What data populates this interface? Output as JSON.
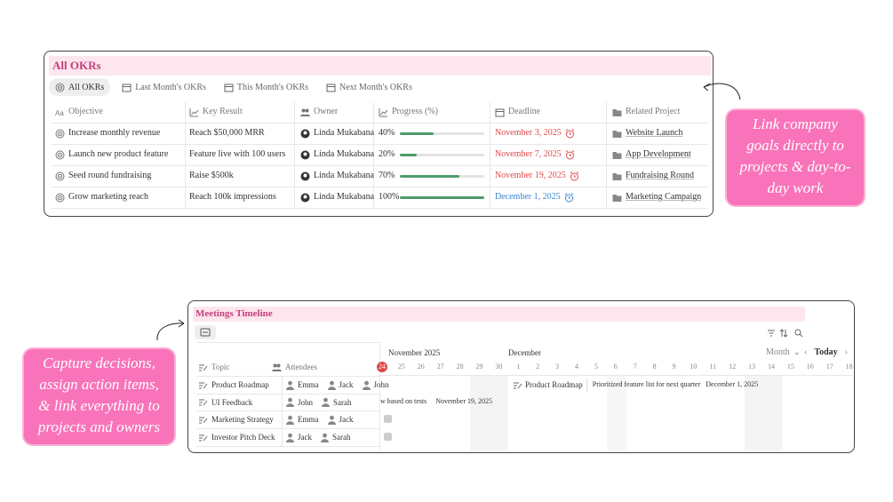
{
  "okrs": {
    "title": "All OKRs",
    "tabs": [
      "All OKRs",
      "Last Month's OKRs",
      "This Month's OKRs",
      "Next Month's OKRs"
    ],
    "columns": [
      "Objective",
      "Key Result",
      "Owner",
      "Progress (%)",
      "Deadline",
      "Related Project"
    ],
    "rows": [
      {
        "objective": "Increase monthly revenue",
        "key_result": "Reach $50,000 MRR",
        "owner": "Linda Mukabana",
        "progress": 40,
        "progress_label": "40%",
        "deadline": "November 3, 2025",
        "deadline_color": "#e0484a",
        "project": "Website Launch"
      },
      {
        "objective": "Launch new product feature",
        "key_result": "Feature live with 100 users",
        "owner": "Linda Mukabana",
        "progress": 20,
        "progress_label": "20%",
        "deadline": "November 7, 2025",
        "deadline_color": "#e0484a",
        "project": "App Development"
      },
      {
        "objective": "Seed round fundraising",
        "key_result": "Raise $500k",
        "owner": "Linda Mukabana",
        "progress": 70,
        "progress_label": "70%",
        "deadline": "November 19, 2025",
        "deadline_color": "#e0484a",
        "project": "Fundraising Round"
      },
      {
        "objective": "Grow marketing reach",
        "key_result": "Reach 100k impressions",
        "owner": "Linda Mukabana",
        "progress": 100,
        "progress_label": "100%",
        "deadline": "December 1, 2025",
        "deadline_color": "#3a86d0",
        "project": "Marketing Campaign"
      }
    ]
  },
  "callouts": [
    [
      "Link company",
      "goals directly to",
      "projects & day-to-",
      "day work"
    ],
    [
      "Capture decisions,",
      "assign action items,",
      "& link everything to",
      "projects and owners"
    ]
  ],
  "meetings": {
    "title": "Meetings Timeline",
    "columns": [
      "Topic",
      "Attendees"
    ],
    "rows": [
      {
        "topic": "Product Roadmap",
        "attendees": [
          "Emma",
          "Jack",
          "John"
        ]
      },
      {
        "topic": "UI Feedback",
        "attendees": [
          "John",
          "Sarah"
        ]
      },
      {
        "topic": "Marketing Strategy",
        "attendees": [
          "Emma",
          "Jack"
        ]
      },
      {
        "topic": "Investor Pitch Deck",
        "attendees": [
          "Jack",
          "Sarah"
        ]
      }
    ],
    "timeline": {
      "months": [
        "November 2025",
        "December"
      ],
      "days": [
        "24",
        "25",
        "26",
        "27",
        "28",
        "29",
        "30",
        "1",
        "2",
        "3",
        "4",
        "5",
        "6",
        "7",
        "8",
        "9",
        "10",
        "11",
        "12",
        "13",
        "14",
        "15",
        "16",
        "17",
        "18"
      ],
      "view": "Month",
      "today": "Today"
    },
    "events": [
      {
        "title": "Product Roadmap",
        "note": "Prioritized feature list for next quarter",
        "date": "December 1, 2025"
      },
      {
        "title": "w based on tests",
        "date": "November 19, 2025"
      }
    ]
  }
}
